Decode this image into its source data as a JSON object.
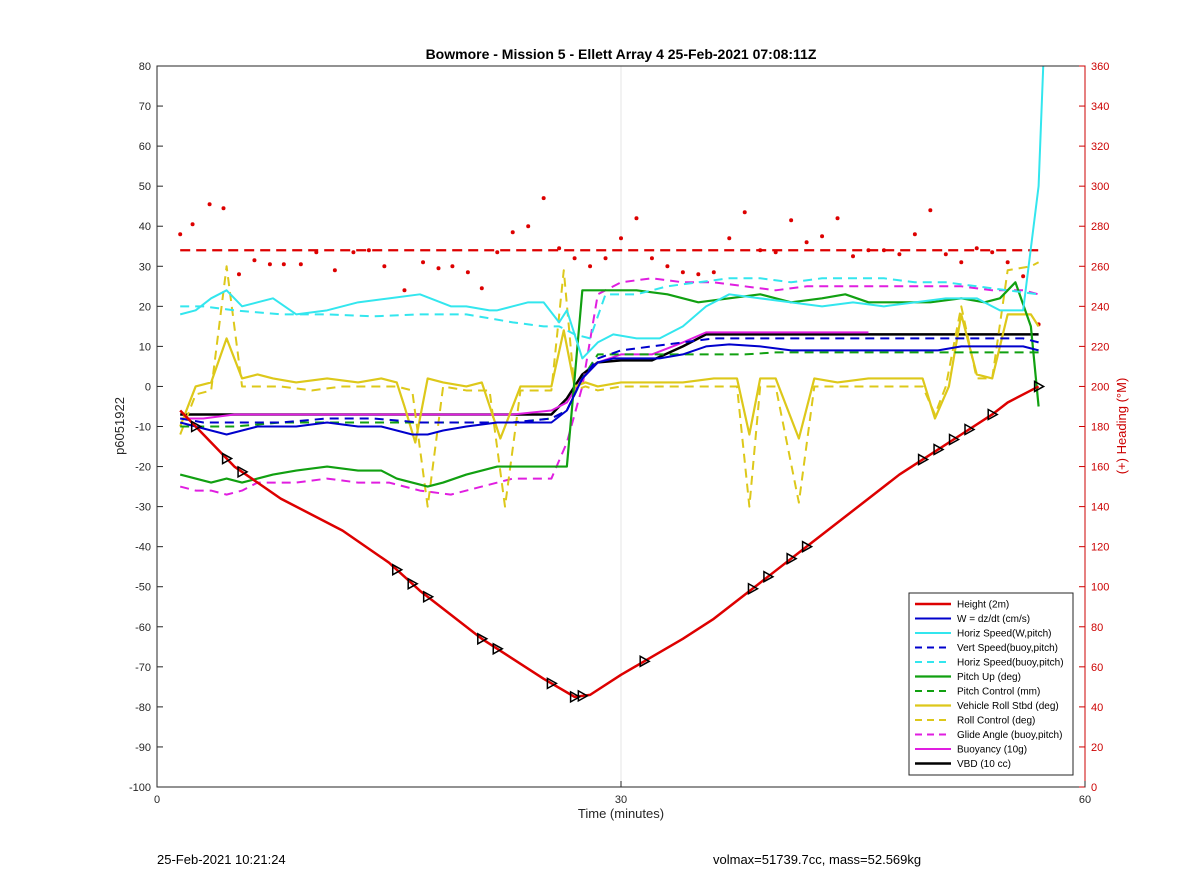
{
  "footer": {
    "left": "25-Feb-2021 10:21:24",
    "right": "volmax=51739.7cc, mass=52.569kg"
  },
  "chart_data": {
    "type": "line",
    "title": "Bowmore - Mission 5 - Ellett Array 4 25-Feb-2021 07:08:11Z",
    "xlabel": "Time (minutes)",
    "ylabel": "p6051922",
    "y2label": "(+) Heading (°M)",
    "xlim": [
      0,
      60
    ],
    "ylim": [
      -100,
      80
    ],
    "y2lim": [
      0,
      360
    ],
    "xticks": [
      0,
      30,
      60
    ],
    "yticks": [
      -100,
      -90,
      -80,
      -70,
      -60,
      -50,
      -40,
      -30,
      -20,
      -10,
      0,
      10,
      20,
      30,
      40,
      50,
      60,
      70,
      80
    ],
    "y2ticks": [
      0,
      20,
      40,
      60,
      80,
      100,
      120,
      140,
      160,
      180,
      200,
      220,
      240,
      260,
      280,
      300,
      320,
      340,
      360
    ],
    "grid": "x at 30 only",
    "legend_position": "bottom-right",
    "colors": {
      "red": "#dd0000",
      "blue": "#0000cc",
      "cyan": "#33e6ee",
      "green": "#11a011",
      "yellow": "#ddc81a",
      "magenta": "#e01ee0",
      "black": "#000000",
      "right_axis": "#cc0000"
    },
    "series": [
      {
        "name": "Height (2m)",
        "color": "#dd0000",
        "style": "solid",
        "width": 2.5,
        "x": [
          1.5,
          3,
          5,
          8,
          12,
          15,
          17,
          19,
          21,
          23,
          25,
          27,
          28,
          30,
          32,
          34,
          36,
          38,
          40,
          42,
          44,
          46,
          48,
          50,
          52,
          54,
          55,
          56.5,
          57
        ],
        "y": [
          -6,
          -12,
          -20,
          -28,
          -36,
          -44,
          -51,
          -57,
          -63,
          -68,
          -73,
          -77.5,
          -77,
          -72,
          -67.5,
          -63,
          -58,
          -52,
          -46,
          -40,
          -34,
          -28,
          -22,
          -17,
          -12,
          -7,
          -4,
          -1,
          0
        ]
      },
      {
        "name": "W = dz/dt (cm/s)",
        "color": "#0000cc",
        "style": "solid",
        "width": 2,
        "x": [
          1.5,
          2.5,
          3.5,
          4.5,
          5.5,
          6.5,
          7.5,
          9,
          11,
          13,
          14.5,
          15.5,
          16.5,
          17.5,
          18.5,
          20,
          22,
          24,
          25.5,
          26.5,
          27.5,
          28.5,
          29.5,
          31,
          32.5,
          34,
          35.5,
          37,
          39,
          41,
          43,
          45,
          47,
          49,
          50.5,
          52,
          54,
          56,
          57
        ],
        "y": [
          -9,
          -10,
          -11,
          -12,
          -11,
          -10,
          -10,
          -10,
          -9,
          -10,
          -10,
          -11,
          -12,
          -12,
          -11,
          -10,
          -9,
          -9,
          -9,
          -6,
          2,
          6,
          7,
          7,
          7,
          8,
          10,
          10.5,
          10,
          9,
          9,
          9,
          9,
          9,
          9,
          10,
          10,
          10,
          9
        ]
      },
      {
        "name": "Horiz Speed(W,pitch)",
        "color": "#33e6ee",
        "style": "solid",
        "width": 2,
        "x": [
          1.5,
          2.5,
          3.5,
          4.5,
          5.5,
          6.5,
          7.5,
          9,
          11,
          13,
          15,
          17,
          19,
          20,
          21.5,
          22,
          23,
          24,
          25,
          26,
          26.5,
          27.5,
          28.5,
          29.5,
          31,
          32.5,
          34,
          35.5,
          37,
          39,
          41,
          43,
          45,
          47,
          49,
          51,
          53,
          54.5,
          56,
          57,
          57.3
        ],
        "y": [
          18,
          19,
          22,
          24,
          20,
          21,
          22,
          18,
          19,
          21,
          22,
          23,
          20,
          20,
          19,
          19,
          20,
          21,
          21,
          16,
          19,
          7,
          11,
          13,
          12,
          12,
          15,
          20,
          23,
          22,
          21,
          20,
          21,
          20,
          21,
          22,
          22,
          19,
          19,
          50,
          80
        ]
      },
      {
        "name": "Vert Speed(buoy,pitch)",
        "color": "#0000cc",
        "style": "dashed",
        "width": 2,
        "x": [
          1.5,
          3,
          5,
          8,
          11,
          14,
          17,
          20,
          23,
          25.5,
          26.5,
          27.5,
          28.5,
          30,
          32,
          34,
          36,
          38,
          40,
          42,
          44,
          46,
          48,
          50,
          52,
          54,
          56,
          57
        ],
        "y": [
          -8,
          -9,
          -9,
          -9,
          -8,
          -8,
          -9,
          -9,
          -9,
          -8,
          -6,
          2,
          7,
          9,
          10,
          11,
          12,
          12,
          12,
          12,
          12,
          12,
          12,
          12,
          12,
          12,
          12,
          11
        ]
      },
      {
        "name": "Horiz Speed(buoy,pitch)",
        "color": "#33e6ee",
        "style": "dashed",
        "width": 2,
        "x": [
          1.5,
          3,
          5,
          8,
          11,
          14,
          17,
          20,
          23,
          25,
          26,
          27,
          28,
          29,
          31,
          33,
          35,
          37,
          39,
          41,
          43,
          45,
          47,
          49,
          51,
          53,
          55,
          57
        ],
        "y": [
          20,
          20,
          19,
          18,
          18,
          17.5,
          18,
          18,
          16,
          15,
          15,
          13,
          12,
          23,
          23,
          25,
          26,
          27,
          27,
          26,
          27,
          27,
          27,
          26,
          26,
          25,
          24,
          23
        ]
      },
      {
        "name": "Pitch Up (deg)",
        "color": "#11a011",
        "style": "solid",
        "width": 2.2,
        "x": [
          1.5,
          2.5,
          3.5,
          4.5,
          5.5,
          6.5,
          7.5,
          9,
          11,
          13,
          14.5,
          15.5,
          16.5,
          17.5,
          18.5,
          20,
          22,
          24,
          25.5,
          26.5,
          27.5,
          29,
          31,
          33,
          35,
          37,
          39,
          41,
          43,
          44.5,
          46,
          48,
          50,
          52,
          53.5,
          54.5,
          55.5,
          56.5,
          57
        ],
        "y": [
          -22,
          -23,
          -24,
          -23,
          -24,
          -23,
          -22,
          -21,
          -20,
          -21,
          -21,
          -23,
          -24,
          -25,
          -24,
          -22,
          -20,
          -20,
          -20,
          -20,
          24,
          24,
          24,
          23,
          21,
          22,
          23,
          21,
          22,
          23,
          21,
          21,
          21,
          22,
          21,
          22,
          26,
          15,
          -5
        ]
      },
      {
        "name": "Pitch Control (mm)",
        "color": "#11a011",
        "style": "dashed",
        "width": 2,
        "x": [
          1.5,
          3,
          5,
          8,
          11,
          14,
          17,
          20,
          23,
          25.5,
          26.5,
          27.5,
          28.5,
          30,
          32,
          34,
          36,
          38,
          40,
          42,
          44,
          46,
          48,
          50,
          52,
          54,
          56,
          57
        ],
        "y": [
          -10,
          -10,
          -10,
          -9,
          -9,
          -9,
          -9,
          -9,
          -9,
          -8,
          -6,
          2,
          8,
          8,
          8,
          8,
          8,
          8,
          8.5,
          8.5,
          8.5,
          8.5,
          8.5,
          8.5,
          8.5,
          8.5,
          8.5,
          8.5
        ]
      },
      {
        "name": "Vehicle Roll Stbd (deg)",
        "color": "#ddc81a",
        "style": "solid",
        "width": 2.2,
        "x": [
          1.5,
          2.5,
          3.5,
          4.5,
          5.5,
          6.5,
          7.5,
          9,
          11,
          13,
          14.5,
          15.5,
          16,
          16.7,
          17.5,
          18.5,
          20,
          21,
          22.2,
          23.5,
          25.5,
          26.3,
          27,
          27.7,
          28.5,
          30,
          32,
          34,
          36,
          37.5,
          38.3,
          39,
          40,
          41.5,
          42.5,
          44,
          46,
          48,
          49.5,
          50.3,
          51.2,
          52,
          53,
          54,
          55,
          56.5,
          57
        ],
        "y": [
          -10,
          0,
          1,
          12,
          2,
          3,
          2,
          1,
          2,
          1,
          2,
          1,
          -5,
          -14,
          2,
          1,
          0,
          1,
          -13,
          0,
          0,
          14,
          0,
          1,
          0,
          1,
          1,
          1,
          2,
          2,
          -12,
          2,
          2,
          -13,
          2,
          1,
          2,
          2,
          2,
          -8,
          0,
          18,
          3,
          2,
          18,
          18,
          15
        ]
      },
      {
        "name": "Roll Control (deg)",
        "color": "#ddc81a",
        "style": "dashed",
        "width": 2,
        "x": [
          1.5,
          2.5,
          3.5,
          4.5,
          5.5,
          6.5,
          8,
          10,
          12,
          14,
          15.5,
          16.5,
          17.5,
          18.5,
          20,
          21.5,
          22.5,
          23.5,
          25.5,
          26.3,
          27,
          27.7,
          28.5,
          30,
          32,
          34,
          36,
          37.5,
          38.3,
          39,
          40,
          41.5,
          42.5,
          44,
          46,
          48,
          49.5,
          50.3,
          51,
          52,
          53,
          54,
          55,
          56.5,
          57
        ],
        "y": [
          -12,
          -2,
          -1,
          30,
          0,
          0,
          0,
          -1,
          0,
          0,
          0,
          -1,
          -30,
          0,
          -1,
          -1,
          -30,
          -1,
          -1,
          29,
          -1,
          0,
          -1,
          0,
          0,
          0,
          0,
          0,
          -30,
          0,
          0,
          -29,
          0,
          0,
          0,
          0,
          0,
          -7,
          0,
          20,
          2,
          2,
          29,
          30,
          31
        ]
      },
      {
        "name": "Glide Angle (buoy,pitch)",
        "color": "#e01ee0",
        "style": "dashed",
        "width": 2,
        "x": [
          1.5,
          2.5,
          3.5,
          4.5,
          5.5,
          6.5,
          7.5,
          9,
          11,
          13,
          15,
          17,
          19,
          21,
          23,
          25.5,
          26.5,
          27.5,
          28.5,
          30,
          32,
          34,
          36,
          38,
          40,
          42,
          44,
          46,
          48,
          50,
          52,
          54,
          56,
          57
        ],
        "y": [
          -25,
          -26,
          -26,
          -27,
          -26,
          -24,
          -24,
          -24,
          -23,
          -24,
          -24,
          -26,
          -27,
          -25,
          -23,
          -23,
          -14,
          0,
          23,
          26,
          27,
          26,
          26,
          25,
          24,
          25,
          25,
          25,
          25,
          25,
          25,
          24,
          24,
          23
        ]
      },
      {
        "name": "Buoyancy (10g)",
        "color": "#e01ee0",
        "style": "solid",
        "width": 2,
        "x": [
          1.5,
          3,
          5,
          8,
          11,
          14,
          17,
          20,
          23,
          25.5,
          26.5,
          27.5,
          28.5,
          30,
          32,
          34,
          35.5,
          37,
          40,
          43,
          46
        ],
        "y": [
          -8,
          -8,
          -7,
          -7,
          -7,
          -7,
          -7,
          -7,
          -7,
          -6,
          -4,
          2,
          6,
          8,
          8,
          11,
          13.5,
          13.5,
          13.5,
          13.5,
          13.5
        ]
      },
      {
        "name": "VBD (10 cc)",
        "color": "#000000",
        "style": "solid",
        "width": 2.5,
        "x": [
          1.5,
          3,
          5,
          8,
          11,
          14,
          17,
          20,
          23,
          25.5,
          26.5,
          27.5,
          28.5,
          30,
          32,
          34,
          35.5,
          37,
          40,
          43,
          46,
          49,
          52,
          55,
          57
        ],
        "y": [
          -7,
          -7,
          -7,
          -7,
          -7,
          -7,
          -7,
          -7,
          -7,
          -7,
          -3,
          3,
          6,
          6.5,
          6.5,
          10,
          13,
          13,
          13,
          13,
          13,
          13,
          13,
          13,
          13
        ]
      }
    ],
    "heading_series": [
      {
        "name": "heading dashed",
        "color": "#dd0000",
        "style": "dashed",
        "axis": "right",
        "x": [
          1.5,
          57
        ],
        "y": [
          268,
          268
        ]
      },
      {
        "name": "heading dots",
        "color": "#dd0000",
        "style": "dots",
        "axis": "right",
        "x": [
          1.5,
          2.3,
          3.4,
          4.3,
          5.3,
          6.3,
          7.3,
          8.2,
          9.3,
          10.3,
          11.5,
          12.7,
          13.7,
          14.7,
          16,
          17.2,
          18.2,
          19.1,
          20.1,
          21,
          22,
          23,
          24,
          25,
          26,
          27,
          28,
          29,
          30,
          31,
          32,
          33,
          34,
          35,
          36,
          37,
          38,
          39,
          40,
          41,
          42,
          43,
          44,
          45,
          46,
          47,
          48,
          49,
          50,
          51,
          52,
          53,
          54,
          55,
          56,
          57
        ],
        "y": [
          276,
          281,
          291,
          289,
          256,
          263,
          261,
          261,
          261,
          267,
          258,
          267,
          268,
          260,
          248,
          262,
          259,
          260,
          257,
          249,
          267,
          277,
          280,
          294,
          269,
          264,
          260,
          264,
          274,
          284,
          264,
          260,
          257,
          256,
          257,
          274,
          287,
          268,
          267,
          283,
          272,
          275,
          284,
          265,
          268,
          268,
          266,
          276,
          288,
          266,
          262,
          269,
          267,
          262,
          255,
          231
        ]
      }
    ],
    "markers": {
      "description": "triangle markers on Height line",
      "x": [
        2.5,
        4.5,
        5.5,
        15.5,
        16.5,
        17.5,
        21,
        22,
        25.5,
        27,
        27.5,
        31.5,
        38.5,
        39.5,
        41,
        42,
        49.5,
        50.5,
        51.5,
        52.5,
        54,
        57
      ]
    },
    "legend": [
      "Height (2m)",
      "W = dz/dt (cm/s)",
      "Horiz Speed(W,pitch)",
      "Vert Speed(buoy,pitch)",
      "Horiz Speed(buoy,pitch)",
      "Pitch Up (deg)",
      "Pitch Control (mm)",
      "Vehicle Roll Stbd (deg)",
      "Roll Control (deg)",
      "Glide Angle (buoy,pitch)",
      "Buoyancy (10g)",
      "VBD (10 cc)"
    ]
  }
}
